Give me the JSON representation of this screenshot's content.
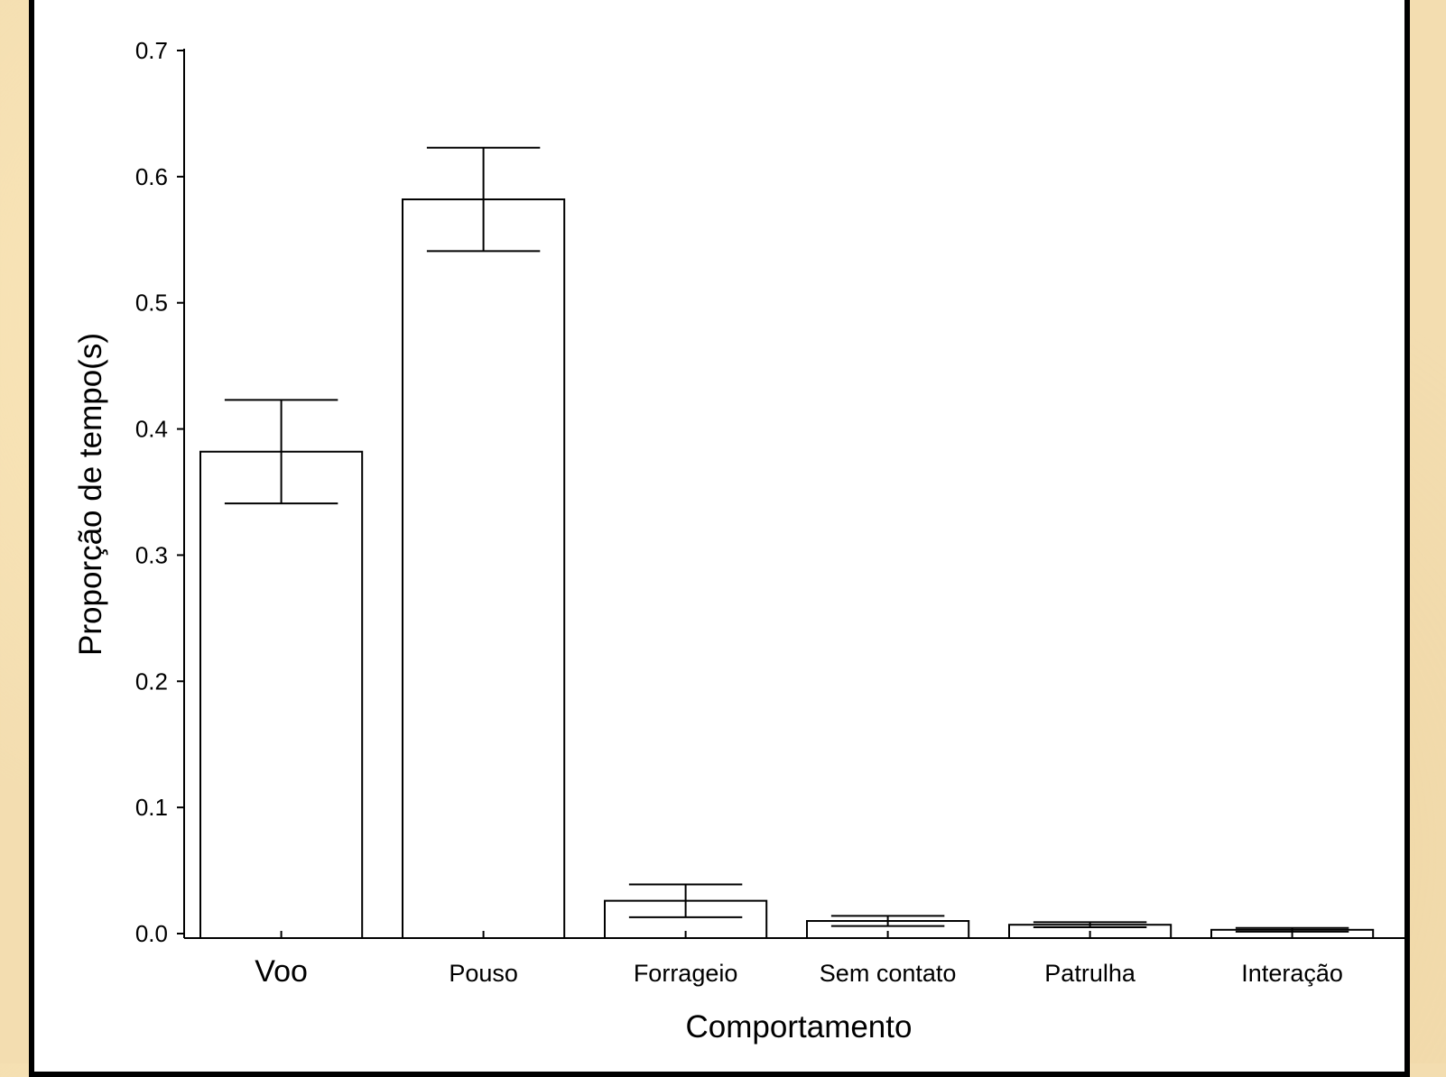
{
  "chart_data": {
    "type": "bar",
    "categories": [
      "Voo",
      "Pouso",
      "Forrageio",
      "Sem contato",
      "Patrulha",
      "Interação"
    ],
    "values": [
      0.382,
      0.582,
      0.026,
      0.01,
      0.007,
      0.003
    ],
    "error_upper": [
      0.423,
      0.623,
      0.039,
      0.014,
      0.009,
      0.0045
    ],
    "error_lower": [
      0.341,
      0.541,
      0.013,
      0.006,
      0.005,
      0.0015
    ],
    "xlabel": "Comportamento",
    "ylabel": "Proporção de tempo(s)",
    "ylim": [
      0,
      0.7
    ],
    "yticks": [
      0.0,
      0.1,
      0.2,
      0.3,
      0.4,
      0.5,
      0.6,
      0.7
    ],
    "ytick_labels": [
      "0.0",
      "0.1",
      "0.2",
      "0.3",
      "0.4",
      "0.5",
      "0.6",
      "0.7"
    ],
    "grid": false,
    "colors": {
      "bar_fill": "#ffffff",
      "bar_stroke": "#000000",
      "frame": "#000000",
      "background": "#f3ddb0"
    }
  }
}
